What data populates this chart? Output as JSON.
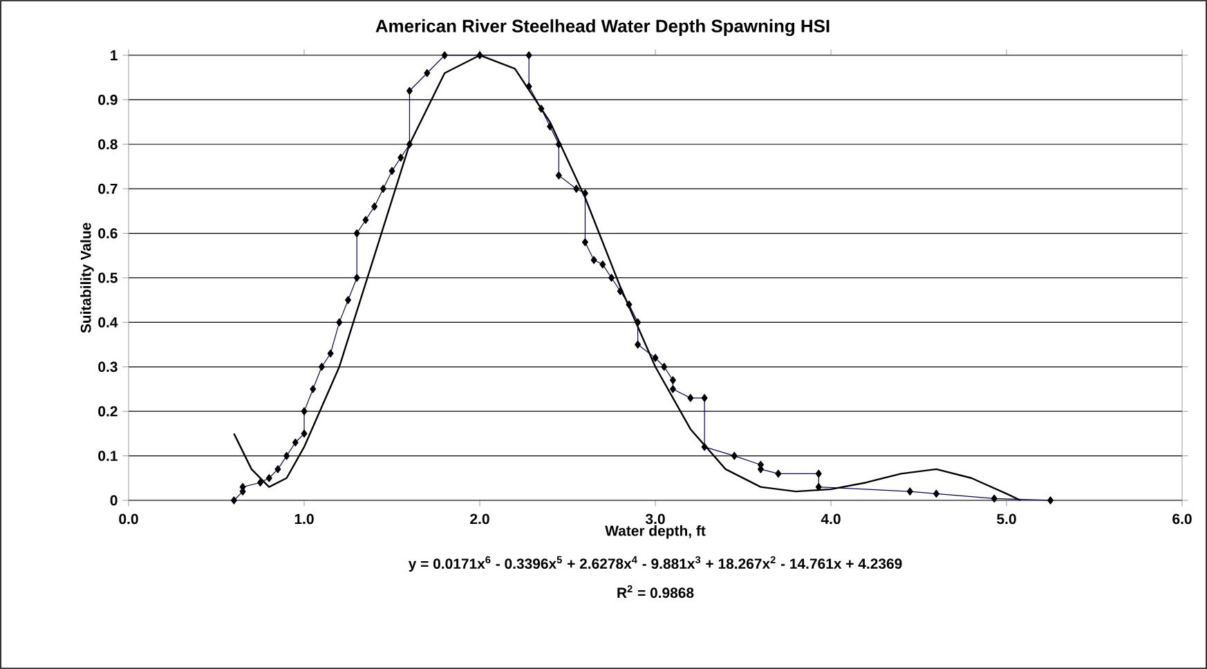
{
  "chart_data": {
    "type": "line",
    "title": "American River Steelhead Water Depth Spawning HSI",
    "xlabel": "Water depth, ft",
    "ylabel": "Suitability Value",
    "annotations": [
      "y = 0.0171x$^{6}$ - 0.3396x$^{5}$ + 2.6278x$^{4}$ - 9.881x$^{3}$ + 18.267x$^{2}$ - 14.761x + 4.2369",
      "R$^{2}$ = 0.9868"
    ],
    "series": [
      {
        "color": "#000080",
        "marker": "diamond",
        "x": [
          0.6,
          0.65,
          0.65,
          0.75,
          0.8,
          0.85,
          0.9,
          0.95,
          1.0,
          1.0,
          1.05,
          1.1,
          1.15,
          1.2,
          1.25,
          1.3,
          1.3,
          1.35,
          1.4,
          1.45,
          1.5,
          1.55,
          1.6,
          1.6,
          1.7,
          1.8,
          2.0,
          2.28,
          2.28,
          2.35,
          2.4,
          2.45,
          2.45,
          2.55,
          2.6,
          2.6,
          2.65,
          2.7,
          2.75,
          2.8,
          2.85,
          2.9,
          2.9,
          3.0,
          3.05,
          3.1,
          3.1,
          3.2,
          3.28,
          3.28,
          3.45,
          3.6,
          3.6,
          3.7,
          3.93,
          3.93,
          4.45,
          4.6,
          4.93,
          5.25
        ],
        "values": [
          0,
          0.02,
          0.03,
          0.04,
          0.05,
          0.07,
          0.1,
          0.13,
          0.15,
          0.2,
          0.25,
          0.3,
          0.33,
          0.4,
          0.45,
          0.5,
          0.6,
          0.63,
          0.66,
          0.7,
          0.74,
          0.77,
          0.8,
          0.92,
          0.96,
          1.0,
          1.0,
          1.0,
          0.93,
          0.88,
          0.84,
          0.8,
          0.73,
          0.7,
          0.69,
          0.58,
          0.54,
          0.53,
          0.5,
          0.47,
          0.44,
          0.4,
          0.35,
          0.32,
          0.3,
          0.27,
          0.25,
          0.23,
          0.23,
          0.12,
          0.1,
          0.08,
          0.07,
          0.06,
          0.06,
          0.03,
          0.02,
          0.015,
          0.004,
          0
        ]
      },
      {
        "color": "#000000",
        "marker": "none",
        "x": [
          0.6,
          0.7,
          0.8,
          0.9,
          1.0,
          1.2,
          1.4,
          1.6,
          1.8,
          2.0,
          2.2,
          2.4,
          2.6,
          2.8,
          3.0,
          3.2,
          3.4,
          3.6,
          3.8,
          4.0,
          4.2,
          4.4,
          4.6,
          4.8,
          5.0,
          5.08
        ],
        "values": [
          0.15,
          0.07,
          0.03,
          0.05,
          0.12,
          0.3,
          0.55,
          0.8,
          0.96,
          1.0,
          0.97,
          0.85,
          0.68,
          0.48,
          0.3,
          0.16,
          0.07,
          0.03,
          0.02,
          0.025,
          0.04,
          0.06,
          0.07,
          0.05,
          0.015,
          0
        ]
      }
    ],
    "xlim": [
      0,
      6
    ],
    "ylim": [
      0,
      1
    ],
    "xticks": [
      {
        "value": 0,
        "label": "0.0"
      },
      {
        "value": 1,
        "label": "1.0"
      },
      {
        "value": 2,
        "label": "2.0"
      },
      {
        "value": 3,
        "label": "3.0"
      },
      {
        "value": 4,
        "label": "4.0"
      },
      {
        "value": 5,
        "label": "5.0"
      },
      {
        "value": 6,
        "label": "6.0"
      }
    ],
    "yticks": [
      0,
      0.1,
      0.2,
      0.3,
      0.4,
      0.5,
      0.6,
      0.7,
      0.8,
      0.9,
      1
    ],
    "grid": "y"
  }
}
